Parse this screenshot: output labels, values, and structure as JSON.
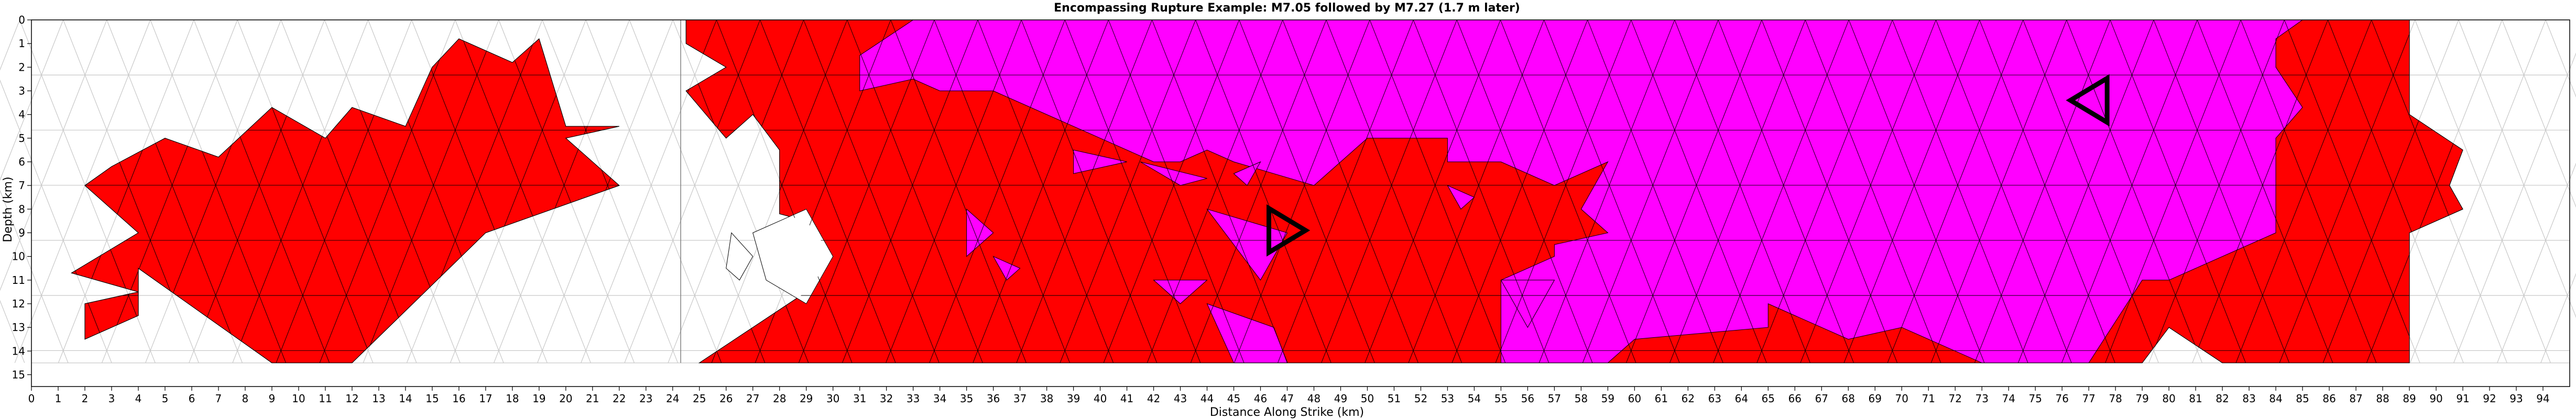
{
  "chart_data": {
    "type": "heatmap",
    "title": "Encompassing Rupture Example: M7.05 followed by M7.27 (1.7 m later)",
    "xlabel": "Distance Along Strike (km)",
    "ylabel": "Depth (km)",
    "xlim": [
      0,
      95
    ],
    "ylim": [
      15.5,
      0
    ],
    "x_ticks": [
      0,
      1,
      2,
      3,
      4,
      5,
      6,
      7,
      8,
      9,
      10,
      11,
      12,
      13,
      14,
      15,
      16,
      17,
      18,
      19,
      20,
      21,
      22,
      23,
      24,
      25,
      26,
      27,
      28,
      29,
      30,
      31,
      32,
      33,
      34,
      35,
      36,
      37,
      38,
      39,
      40,
      41,
      42,
      43,
      44,
      45,
      46,
      47,
      48,
      49,
      50,
      51,
      52,
      53,
      54,
      55,
      56,
      57,
      58,
      59,
      60,
      61,
      62,
      63,
      64,
      65,
      66,
      67,
      68,
      69,
      70,
      71,
      72,
      73,
      74,
      75,
      76,
      77,
      78,
      79,
      80,
      81,
      82,
      83,
      84,
      85,
      86,
      87,
      88,
      89,
      90,
      91,
      92,
      93,
      94
    ],
    "y_ticks": [
      0,
      1,
      2,
      3,
      4,
      5,
      6,
      7,
      8,
      9,
      10,
      11,
      12,
      13,
      14,
      15
    ],
    "colors": {
      "first_event": "#ff0000",
      "second_event": "#ff00ff",
      "unruptured": "#ffffff",
      "mesh_line": "#c8c8c8",
      "ruptured_edge": "#000000"
    },
    "mesh": "triangular elements, ~1.6 km along strike × 2.3 km depth",
    "legend": "none",
    "hypocenters": [
      {
        "event": "M7.05",
        "x": 47.0,
        "y": 8.9,
        "direction": "right"
      },
      {
        "event": "M7.27",
        "x": 77.0,
        "y": 3.4,
        "direction": "left"
      }
    ],
    "events": [
      {
        "name": "M7.05",
        "color": "red"
      },
      {
        "name": "M7.27",
        "color": "magenta",
        "delay": "1.7 m later"
      }
    ],
    "rupture_patch_1_outline": [
      [
        2,
        7
      ],
      [
        3,
        6.2
      ],
      [
        5,
        5
      ],
      [
        7,
        5.8
      ],
      [
        9,
        3.7
      ],
      [
        11,
        5
      ],
      [
        12,
        3.7
      ],
      [
        14,
        4.5
      ],
      [
        15,
        2
      ],
      [
        16,
        0.8
      ],
      [
        18,
        1.8
      ],
      [
        19,
        0.8
      ],
      [
        20,
        4.5
      ],
      [
        22,
        4.5
      ],
      [
        20,
        5
      ],
      [
        22,
        7
      ],
      [
        17,
        9
      ],
      [
        12,
        14.5
      ],
      [
        9,
        14.5
      ],
      [
        4,
        10.5
      ],
      [
        4,
        12.5
      ],
      [
        2,
        13.5
      ],
      [
        2,
        12
      ],
      [
        4,
        11.5
      ],
      [
        1.5,
        10.7
      ],
      [
        4,
        9
      ]
    ],
    "rupture_patch_2_outline": [
      [
        24.5,
        0
      ],
      [
        89,
        0
      ],
      [
        89,
        4
      ],
      [
        91,
        5.5
      ],
      [
        90.5,
        7
      ],
      [
        91,
        8
      ],
      [
        89,
        9
      ],
      [
        89,
        14.5
      ],
      [
        82,
        14.5
      ],
      [
        80,
        13
      ],
      [
        79,
        14.5
      ],
      [
        77,
        14.5
      ],
      [
        73,
        14.5
      ],
      [
        68,
        14.5
      ],
      [
        60,
        14.5
      ],
      [
        44,
        14.5
      ],
      [
        25,
        14.5
      ],
      [
        27,
        13
      ],
      [
        29,
        11.5
      ],
      [
        30,
        10
      ],
      [
        29,
        8.5
      ],
      [
        28,
        8.2
      ],
      [
        28,
        5.5
      ],
      [
        27,
        4
      ],
      [
        26,
        5
      ],
      [
        24.5,
        3
      ],
      [
        26,
        2
      ],
      [
        24.5,
        1
      ]
    ],
    "second_event_outline": [
      [
        33,
        0
      ],
      [
        85,
        0
      ],
      [
        84,
        0.8
      ],
      [
        84,
        2
      ],
      [
        85,
        3.7
      ],
      [
        84,
        5
      ],
      [
        84,
        9
      ],
      [
        80,
        11
      ],
      [
        79,
        11
      ],
      [
        77,
        14.5
      ],
      [
        73,
        14.5
      ],
      [
        70,
        13
      ],
      [
        68,
        13.5
      ],
      [
        66,
        12.5
      ],
      [
        65,
        12
      ],
      [
        65,
        13
      ],
      [
        60,
        13.5
      ],
      [
        59,
        14.5
      ],
      [
        55,
        14.5
      ],
      [
        55,
        11
      ],
      [
        57,
        10
      ],
      [
        57,
        9.5
      ],
      [
        59,
        9
      ],
      [
        58,
        8
      ],
      [
        59,
        6
      ],
      [
        57,
        7
      ],
      [
        55,
        6
      ],
      [
        53,
        6
      ],
      [
        53,
        5
      ],
      [
        50,
        5
      ],
      [
        48,
        7
      ],
      [
        45,
        6
      ],
      [
        44,
        5.5
      ],
      [
        43,
        6
      ],
      [
        42,
        6
      ],
      [
        40,
        5
      ],
      [
        36,
        3
      ],
      [
        34,
        3
      ],
      [
        33,
        2.5
      ],
      [
        31,
        3
      ],
      [
        31,
        1.5
      ]
    ],
    "second_event_islands": [
      [
        [
          39,
          5.5
        ],
        [
          41,
          6
        ],
        [
          39,
          6.5
        ]
      ],
      [
        [
          41.5,
          6
        ],
        [
          44,
          6.7
        ],
        [
          43,
          7
        ]
      ],
      [
        [
          45,
          6.5
        ],
        [
          46,
          6
        ],
        [
          45.5,
          7
        ]
      ],
      [
        [
          53,
          7
        ],
        [
          54,
          7.5
        ],
        [
          53.5,
          8
        ]
      ],
      [
        [
          35,
          8
        ],
        [
          36,
          9
        ],
        [
          35,
          10
        ]
      ],
      [
        [
          36,
          10
        ],
        [
          37,
          10.5
        ],
        [
          36.5,
          11
        ]
      ],
      [
        [
          44,
          8
        ],
        [
          47,
          9
        ],
        [
          46,
          11
        ]
      ],
      [
        [
          42,
          11
        ],
        [
          44,
          11
        ],
        [
          43,
          12
        ]
      ],
      [
        [
          44,
          12
        ],
        [
          45,
          14.5
        ],
        [
          47,
          14.5
        ],
        [
          46.5,
          13
        ]
      ],
      [
        [
          55,
          11
        ],
        [
          57,
          11
        ],
        [
          56,
          13
        ]
      ]
    ],
    "unruptured_islands": [
      [
        [
          27,
          9
        ],
        [
          29,
          8
        ],
        [
          30,
          10
        ],
        [
          29,
          12
        ],
        [
          27.5,
          11
        ]
      ],
      [
        [
          26.2,
          9
        ],
        [
          27,
          10
        ],
        [
          26.5,
          11
        ],
        [
          26,
          10.5
        ]
      ]
    ]
  }
}
